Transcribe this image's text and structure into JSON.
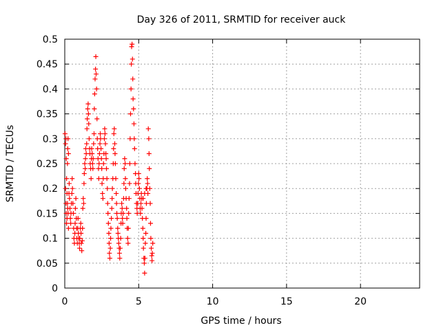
{
  "chart_data": {
    "type": "scatter",
    "title": "Day 326 of 2011, SRMTID for receiver auck",
    "xlabel": "GPS time / hours",
    "ylabel": "SRMTID / TECUs",
    "xlim": [
      0,
      24
    ],
    "ylim": [
      0,
      0.5
    ],
    "x_ticks": [
      0,
      5,
      10,
      15,
      20
    ],
    "y_ticks": [
      0,
      0.05,
      0.1,
      0.15,
      0.2,
      0.25,
      0.3,
      0.35,
      0.4,
      0.45,
      0.5
    ],
    "x_tick_labels": [
      "0",
      "5",
      "10",
      "15",
      "20"
    ],
    "y_tick_labels": [
      "0",
      "0.05",
      "0.1",
      "0.15",
      "0.2",
      "0.25",
      "0.3",
      "0.35",
      "0.4",
      "0.45",
      "0.5"
    ],
    "grid": true,
    "marker": "+",
    "color": "#ff0000",
    "series": [
      {
        "points": [
          [
            0.02,
            0.31
          ],
          [
            0.05,
            0.29
          ],
          [
            0.08,
            0.3
          ],
          [
            0.1,
            0.26
          ],
          [
            0.12,
            0.22
          ],
          [
            0.15,
            0.19
          ],
          [
            0.18,
            0.25
          ],
          [
            0.2,
            0.28
          ],
          [
            0.22,
            0.3
          ],
          [
            0.25,
            0.27
          ],
          [
            0.05,
            0.2
          ],
          [
            0.08,
            0.17
          ],
          [
            0.1,
            0.15
          ],
          [
            0.12,
            0.13
          ],
          [
            0.15,
            0.14
          ],
          [
            0.18,
            0.17
          ],
          [
            0.2,
            0.16
          ],
          [
            0.22,
            0.15
          ],
          [
            0.25,
            0.12
          ],
          [
            0.28,
            0.19
          ],
          [
            0.3,
            0.21
          ],
          [
            0.32,
            0.18
          ],
          [
            0.35,
            0.16
          ],
          [
            0.38,
            0.14
          ],
          [
            0.4,
            0.13
          ],
          [
            0.42,
            0.15
          ],
          [
            0.45,
            0.17
          ],
          [
            0.48,
            0.19
          ],
          [
            0.5,
            0.22
          ],
          [
            0.52,
            0.2
          ],
          [
            0.55,
            0.17
          ],
          [
            0.58,
            0.15
          ],
          [
            0.6,
            0.12
          ],
          [
            0.62,
            0.1
          ],
          [
            0.65,
            0.09
          ],
          [
            0.68,
            0.11
          ],
          [
            0.7,
            0.13
          ],
          [
            0.72,
            0.16
          ],
          [
            0.75,
            0.18
          ],
          [
            0.78,
            0.14
          ],
          [
            0.8,
            0.12
          ],
          [
            0.82,
            0.1
          ],
          [
            0.85,
            0.09
          ],
          [
            0.88,
            0.12
          ],
          [
            0.9,
            0.14
          ],
          [
            0.92,
            0.11
          ],
          [
            0.95,
            0.1
          ],
          [
            0.98,
            0.09
          ],
          [
            1.0,
            0.08
          ],
          [
            1.02,
            0.1
          ],
          [
            1.05,
            0.12
          ],
          [
            1.08,
            0.13
          ],
          [
            1.1,
            0.11
          ],
          [
            1.12,
            0.09
          ],
          [
            1.15,
            0.075
          ],
          [
            1.18,
            0.095
          ],
          [
            1.2,
            0.12
          ],
          [
            1.22,
            0.16
          ],
          [
            1.25,
            0.18
          ],
          [
            1.28,
            0.17
          ],
          [
            1.3,
            0.21
          ],
          [
            1.32,
            0.23
          ],
          [
            1.35,
            0.25
          ],
          [
            1.38,
            0.24
          ],
          [
            1.4,
            0.26
          ],
          [
            1.42,
            0.28
          ],
          [
            1.45,
            0.27
          ],
          [
            1.48,
            0.29
          ],
          [
            1.5,
            0.32
          ],
          [
            1.52,
            0.34
          ],
          [
            1.55,
            0.36
          ],
          [
            1.58,
            0.37
          ],
          [
            1.6,
            0.35
          ],
          [
            1.62,
            0.33
          ],
          [
            1.65,
            0.3
          ],
          [
            1.68,
            0.28
          ],
          [
            1.7,
            0.27
          ],
          [
            1.72,
            0.25
          ],
          [
            1.75,
            0.24
          ],
          [
            1.78,
            0.22
          ],
          [
            1.8,
            0.26
          ],
          [
            1.82,
            0.28
          ],
          [
            1.85,
            0.27
          ],
          [
            1.88,
            0.25
          ],
          [
            1.9,
            0.24
          ],
          [
            1.92,
            0.26
          ],
          [
            1.95,
            0.29
          ],
          [
            1.98,
            0.31
          ],
          [
            2.0,
            0.36
          ],
          [
            2.02,
            0.39
          ],
          [
            2.05,
            0.42
          ],
          [
            2.08,
            0.44
          ],
          [
            2.1,
            0.465
          ],
          [
            2.12,
            0.43
          ],
          [
            2.15,
            0.4
          ],
          [
            2.18,
            0.34
          ],
          [
            2.2,
            0.3
          ],
          [
            2.22,
            0.28
          ],
          [
            2.25,
            0.26
          ],
          [
            2.28,
            0.24
          ],
          [
            2.3,
            0.22
          ],
          [
            2.32,
            0.25
          ],
          [
            2.35,
            0.27
          ],
          [
            2.38,
            0.29
          ],
          [
            2.4,
            0.31
          ],
          [
            2.42,
            0.3
          ],
          [
            2.45,
            0.28
          ],
          [
            2.48,
            0.26
          ],
          [
            2.5,
            0.24
          ],
          [
            2.52,
            0.21
          ],
          [
            2.55,
            0.19
          ],
          [
            2.58,
            0.18
          ],
          [
            2.6,
            0.22
          ],
          [
            2.62,
            0.25
          ],
          [
            2.65,
            0.27
          ],
          [
            2.68,
            0.3
          ],
          [
            2.7,
            0.32
          ],
          [
            2.72,
            0.31
          ],
          [
            2.75,
            0.29
          ],
          [
            2.78,
            0.27
          ],
          [
            2.8,
            0.26
          ],
          [
            2.82,
            0.24
          ],
          [
            2.85,
            0.22
          ],
          [
            2.88,
            0.2
          ],
          [
            2.9,
            0.17
          ],
          [
            2.92,
            0.15
          ],
          [
            2.95,
            0.13
          ],
          [
            2.98,
            0.11
          ],
          [
            3.0,
            0.09
          ],
          [
            3.02,
            0.07
          ],
          [
            3.05,
            0.06
          ],
          [
            3.08,
            0.08
          ],
          [
            3.1,
            0.1
          ],
          [
            3.12,
            0.12
          ],
          [
            3.15,
            0.14
          ],
          [
            3.18,
            0.16
          ],
          [
            3.2,
            0.18
          ],
          [
            3.22,
            0.2
          ],
          [
            3.25,
            0.22
          ],
          [
            3.28,
            0.25
          ],
          [
            3.3,
            0.28
          ],
          [
            3.32,
            0.31
          ],
          [
            3.35,
            0.32
          ],
          [
            3.38,
            0.29
          ],
          [
            3.4,
            0.27
          ],
          [
            3.42,
            0.25
          ],
          [
            3.45,
            0.22
          ],
          [
            3.48,
            0.19
          ],
          [
            3.5,
            0.17
          ],
          [
            3.52,
            0.15
          ],
          [
            3.55,
            0.14
          ],
          [
            3.58,
            0.12
          ],
          [
            3.6,
            0.11
          ],
          [
            3.62,
            0.1
          ],
          [
            3.65,
            0.09
          ],
          [
            3.68,
            0.08
          ],
          [
            3.7,
            0.07
          ],
          [
            3.72,
            0.06
          ],
          [
            3.75,
            0.08
          ],
          [
            3.78,
            0.1
          ],
          [
            3.8,
            0.13
          ],
          [
            3.82,
            0.15
          ],
          [
            3.85,
            0.17
          ],
          [
            3.88,
            0.16
          ],
          [
            3.9,
            0.14
          ],
          [
            3.92,
            0.13
          ],
          [
            3.95,
            0.15
          ],
          [
            3.98,
            0.18
          ],
          [
            4.0,
            0.21
          ],
          [
            4.02,
            0.24
          ],
          [
            4.05,
            0.26
          ],
          [
            4.08,
            0.25
          ],
          [
            4.1,
            0.22
          ],
          [
            4.12,
            0.2
          ],
          [
            4.15,
            0.18
          ],
          [
            4.18,
            0.16
          ],
          [
            4.2,
            0.14
          ],
          [
            4.22,
            0.12
          ],
          [
            4.25,
            0.1
          ],
          [
            4.28,
            0.09
          ],
          [
            4.3,
            0.12
          ],
          [
            4.32,
            0.15
          ],
          [
            4.35,
            0.18
          ],
          [
            4.38,
            0.21
          ],
          [
            4.4,
            0.25
          ],
          [
            4.42,
            0.3
          ],
          [
            4.45,
            0.35
          ],
          [
            4.48,
            0.4
          ],
          [
            4.5,
            0.45
          ],
          [
            4.52,
            0.485
          ],
          [
            4.55,
            0.49
          ],
          [
            4.58,
            0.46
          ],
          [
            4.6,
            0.42
          ],
          [
            4.62,
            0.38
          ],
          [
            4.65,
            0.36
          ],
          [
            4.68,
            0.33
          ],
          [
            4.7,
            0.3
          ],
          [
            4.72,
            0.28
          ],
          [
            4.75,
            0.25
          ],
          [
            4.78,
            0.23
          ],
          [
            4.8,
            0.21
          ],
          [
            4.82,
            0.19
          ],
          [
            4.85,
            0.17
          ],
          [
            4.88,
            0.16
          ],
          [
            4.9,
            0.15
          ],
          [
            4.92,
            0.17
          ],
          [
            4.95,
            0.19
          ],
          [
            4.98,
            0.21
          ],
          [
            5.0,
            0.23
          ],
          [
            5.02,
            0.22
          ],
          [
            5.05,
            0.2
          ],
          [
            5.08,
            0.18
          ],
          [
            5.1,
            0.16
          ],
          [
            5.12,
            0.15
          ],
          [
            5.15,
            0.17
          ],
          [
            5.18,
            0.19
          ],
          [
            5.2,
            0.18
          ],
          [
            5.22,
            0.16
          ],
          [
            5.25,
            0.14
          ],
          [
            5.28,
            0.12
          ],
          [
            5.3,
            0.1
          ],
          [
            5.32,
            0.08
          ],
          [
            5.35,
            0.06
          ],
          [
            5.38,
            0.05
          ],
          [
            5.4,
            0.03
          ],
          [
            5.42,
            0.06
          ],
          [
            5.45,
            0.09
          ],
          [
            5.48,
            0.11
          ],
          [
            5.5,
            0.14
          ],
          [
            5.52,
            0.17
          ],
          [
            5.55,
            0.2
          ],
          [
            5.58,
            0.22
          ],
          [
            5.6,
            0.21
          ],
          [
            5.62,
            0.19
          ],
          [
            5.65,
            0.32
          ],
          [
            5.68,
            0.3
          ],
          [
            5.7,
            0.27
          ],
          [
            5.72,
            0.24
          ],
          [
            5.75,
            0.2
          ],
          [
            5.78,
            0.17
          ],
          [
            5.8,
            0.13
          ],
          [
            5.82,
            0.1
          ],
          [
            5.85,
            0.08
          ],
          [
            5.88,
            0.065
          ],
          [
            5.9,
            0.055
          ],
          [
            5.92,
            0.07
          ],
          [
            5.95,
            0.09
          ],
          [
            5.5,
            0.2
          ],
          [
            5.4,
            0.19
          ],
          [
            5.3,
            0.18
          ]
        ]
      }
    ]
  }
}
